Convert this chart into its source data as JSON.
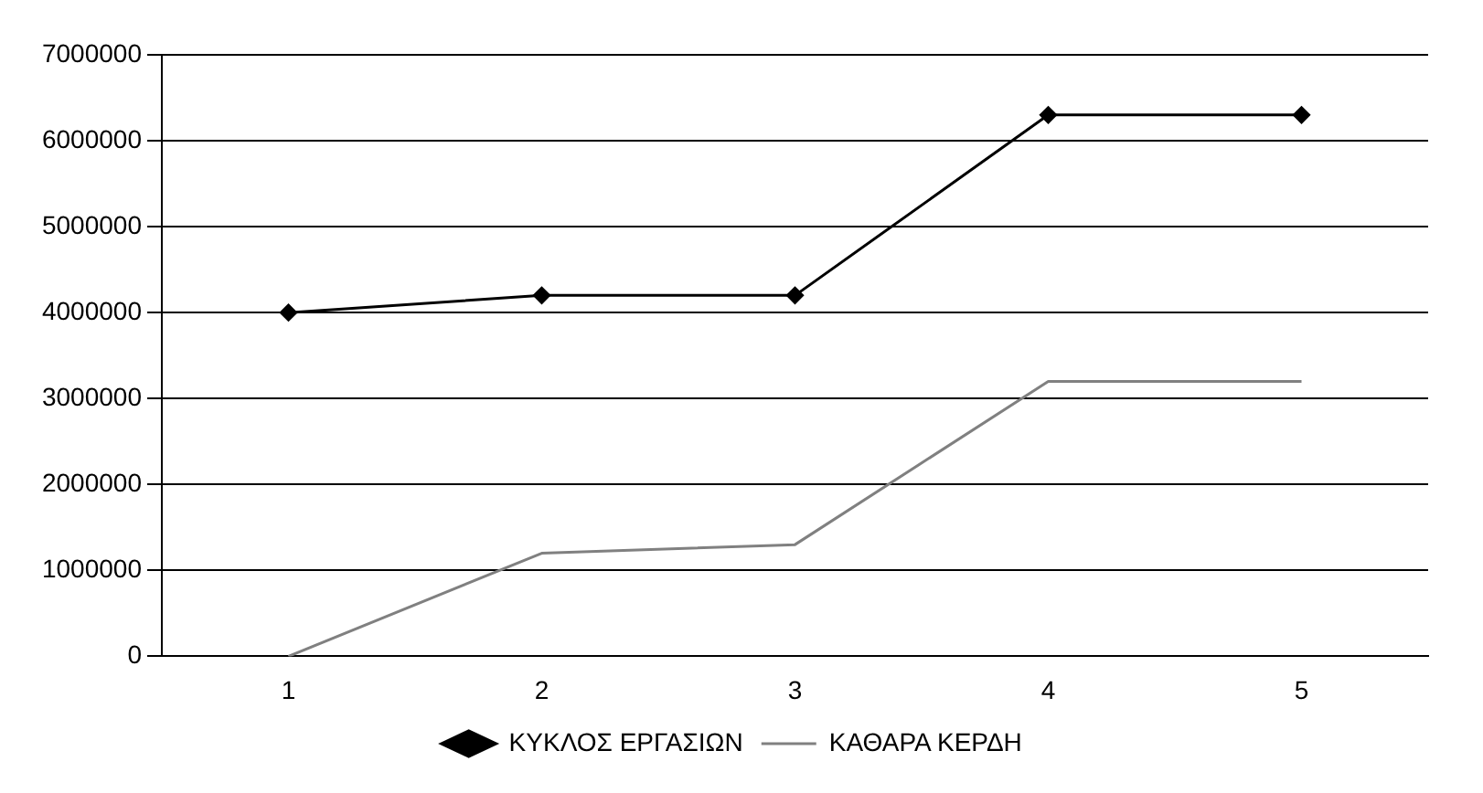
{
  "chart_data": {
    "type": "line",
    "categories": [
      "1",
      "2",
      "3",
      "4",
      "5"
    ],
    "series": [
      {
        "name": "ΚΥΚΛΟΣ ΕΡΓΑΣΙΩΝ",
        "color": "#000000",
        "values": [
          4000000,
          4200000,
          4200000,
          6300000,
          6300000
        ],
        "marker": "diamond"
      },
      {
        "name": "ΚΑΘΑΡΑ ΚΕΡΔΗ",
        "color": "#808080",
        "values": [
          0,
          1200000,
          1300000,
          3200000,
          3200000
        ],
        "marker": "none"
      }
    ],
    "ylim": [
      0,
      7000000
    ],
    "yticks": [
      0,
      1000000,
      2000000,
      3000000,
      4000000,
      5000000,
      6000000,
      7000000
    ],
    "grid": "y",
    "legend": "bottom"
  }
}
